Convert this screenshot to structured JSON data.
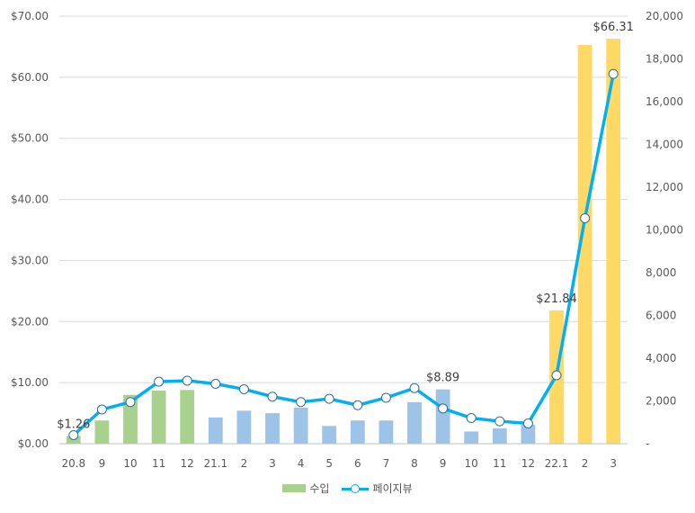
{
  "chart_data": {
    "type": "bar",
    "categories": [
      "20.8",
      "9",
      "10",
      "11",
      "12",
      "21.1",
      "2",
      "3",
      "4",
      "5",
      "6",
      "7",
      "8",
      "9",
      "10",
      "11",
      "12",
      "22.1",
      "2",
      "3"
    ],
    "series": [
      {
        "name": "수입",
        "axis": "left",
        "values": [
          1.26,
          3.8,
          8.0,
          8.7,
          8.8,
          4.3,
          5.4,
          5.0,
          5.9,
          2.9,
          3.8,
          3.8,
          6.8,
          8.89,
          2.0,
          2.5,
          3.1,
          21.84,
          65.3,
          66.31
        ],
        "colors": [
          "#a9d18e",
          "#a9d18e",
          "#a9d18e",
          "#a9d18e",
          "#a9d18e",
          "#9dc3e6",
          "#9dc3e6",
          "#9dc3e6",
          "#9dc3e6",
          "#9dc3e6",
          "#9dc3e6",
          "#9dc3e6",
          "#9dc3e6",
          "#9dc3e6",
          "#9dc3e6",
          "#9dc3e6",
          "#9dc3e6",
          "#ffd966",
          "#ffd966",
          "#ffd966"
        ]
      },
      {
        "name": "페이지뷰",
        "type": "line",
        "axis": "right",
        "color": "#00b0f0",
        "values": [
          400,
          1600,
          1950,
          2900,
          2950,
          2800,
          2550,
          2200,
          1950,
          2100,
          1800,
          2150,
          2600,
          1650,
          1200,
          1050,
          950,
          3200,
          10550,
          17300
        ]
      }
    ],
    "y_left": {
      "ylim": [
        0,
        70
      ],
      "ticks": [
        "$0.00",
        "$10.00",
        "$20.00",
        "$30.00",
        "$40.00",
        "$50.00",
        "$60.00",
        "$70.00"
      ]
    },
    "y_right": {
      "ylim": [
        0,
        20000
      ],
      "ticks": [
        "-",
        "2,000",
        "4,000",
        "6,000",
        "8,000",
        "10,000",
        "12,000",
        "14,000",
        "16,000",
        "18,000",
        "20,000"
      ]
    },
    "annotations": [
      {
        "index": 0,
        "text": "$1.26"
      },
      {
        "index": 13,
        "text": "$8.89"
      },
      {
        "index": 17,
        "text": "$21.84"
      },
      {
        "index": 19,
        "text": "$66.31"
      }
    ],
    "grid": true,
    "legend_position": "bottom"
  }
}
